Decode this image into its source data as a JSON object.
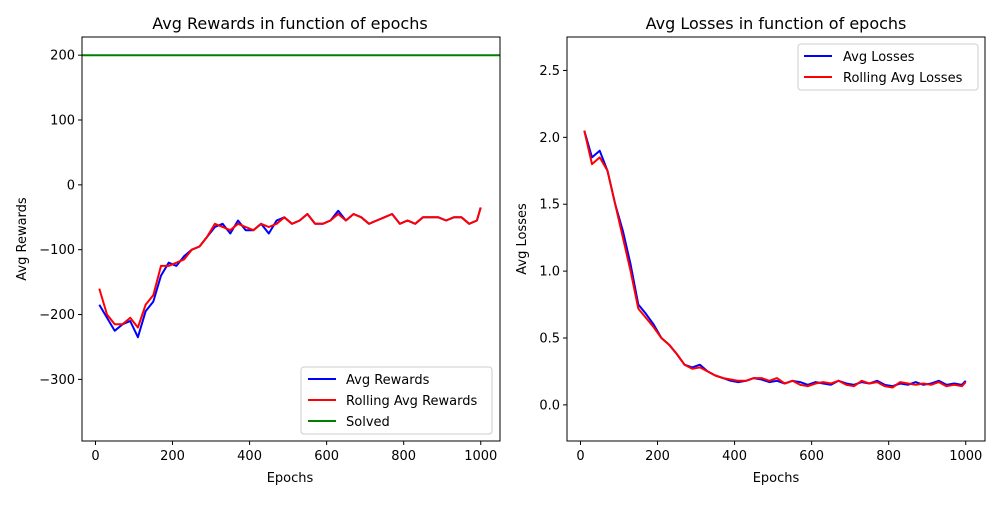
{
  "chart_data": [
    {
      "type": "line",
      "title": "Avg Rewards in function of epochs",
      "xlabel": "Epochs",
      "ylabel": "Avg Rewards",
      "xlim": [
        -35,
        1050
      ],
      "ylim": [
        -395,
        228
      ],
      "xticks": [
        0,
        200,
        400,
        600,
        800,
        1000
      ],
      "yticks": [
        -300,
        -200,
        -100,
        0,
        100,
        200
      ],
      "xtick_labels": [
        "0",
        "200",
        "400",
        "600",
        "800",
        "1000"
      ],
      "ytick_labels": [
        "−300",
        "−200",
        "−100",
        "0",
        "100",
        "200"
      ],
      "legend_position": "lower-right",
      "series": [
        {
          "name": "Avg Rewards",
          "color": "#0000ff",
          "x": [
            10,
            30,
            50,
            70,
            90,
            110,
            130,
            150,
            170,
            190,
            210,
            230,
            250,
            270,
            290,
            310,
            330,
            350,
            370,
            390,
            410,
            430,
            450,
            470,
            490,
            510,
            530,
            550,
            570,
            590,
            610,
            630,
            650,
            670,
            690,
            710,
            730,
            750,
            770,
            790,
            810,
            830,
            850,
            870,
            890,
            910,
            930,
            950,
            970,
            990,
            1000
          ],
          "y": [
            -185,
            -205,
            -225,
            -215,
            -210,
            -235,
            -195,
            -180,
            -140,
            -120,
            -125,
            -110,
            -100,
            -95,
            -80,
            -65,
            -60,
            -75,
            -55,
            -70,
            -70,
            -60,
            -75,
            -55,
            -50,
            -60,
            -55,
            -45,
            -60,
            -60,
            -55,
            -40,
            -55,
            -45,
            -50,
            -60,
            -55,
            -50,
            -45,
            -60,
            -55,
            -60,
            -50,
            -50,
            -50,
            -55,
            -50,
            -50,
            -60,
            -55,
            -35
          ]
        },
        {
          "name": "Rolling Avg Rewards",
          "color": "#ff0000",
          "x": [
            10,
            30,
            50,
            70,
            90,
            110,
            130,
            150,
            170,
            190,
            210,
            230,
            250,
            270,
            290,
            310,
            330,
            350,
            370,
            390,
            410,
            430,
            450,
            470,
            490,
            510,
            530,
            550,
            570,
            590,
            610,
            630,
            650,
            670,
            690,
            710,
            730,
            750,
            770,
            790,
            810,
            830,
            850,
            870,
            890,
            910,
            930,
            950,
            970,
            990,
            1000
          ],
          "y": [
            -160,
            -200,
            -215,
            -215,
            -205,
            -220,
            -185,
            -170,
            -125,
            -125,
            -120,
            -115,
            -100,
            -95,
            -80,
            -60,
            -65,
            -70,
            -60,
            -65,
            -70,
            -60,
            -65,
            -60,
            -50,
            -60,
            -55,
            -45,
            -60,
            -60,
            -55,
            -45,
            -55,
            -45,
            -50,
            -60,
            -55,
            -50,
            -45,
            -60,
            -55,
            -60,
            -50,
            -50,
            -50,
            -55,
            -50,
            -50,
            -60,
            -55,
            -35
          ]
        },
        {
          "name": "Solved",
          "color": "#008000",
          "x": [
            -35,
            1050
          ],
          "y": [
            200,
            200
          ]
        }
      ]
    },
    {
      "type": "line",
      "title": "Avg Losses in function of epochs",
      "xlabel": "Epochs",
      "ylabel": "Avg Losses",
      "xlim": [
        -35,
        1050
      ],
      "ylim": [
        -0.27,
        2.75
      ],
      "xticks": [
        0,
        200,
        400,
        600,
        800,
        1000
      ],
      "yticks": [
        0.0,
        0.5,
        1.0,
        1.5,
        2.0,
        2.5
      ],
      "xtick_labels": [
        "0",
        "200",
        "400",
        "600",
        "800",
        "1000"
      ],
      "ytick_labels": [
        "0.0",
        "0.5",
        "1.0",
        "1.5",
        "2.0",
        "2.5"
      ],
      "legend_position": "upper-right",
      "series": [
        {
          "name": "Avg Losses",
          "color": "#0000ff",
          "x": [
            10,
            30,
            50,
            70,
            90,
            110,
            130,
            150,
            170,
            190,
            210,
            230,
            250,
            270,
            290,
            310,
            330,
            350,
            370,
            390,
            410,
            430,
            450,
            470,
            490,
            510,
            530,
            550,
            570,
            590,
            610,
            630,
            650,
            670,
            690,
            710,
            730,
            750,
            770,
            790,
            810,
            830,
            850,
            870,
            890,
            910,
            930,
            950,
            970,
            990,
            1000
          ],
          "y": [
            2.05,
            1.85,
            1.9,
            1.75,
            1.5,
            1.3,
            1.05,
            0.75,
            0.68,
            0.6,
            0.5,
            0.45,
            0.38,
            0.3,
            0.28,
            0.3,
            0.25,
            0.22,
            0.2,
            0.18,
            0.17,
            0.18,
            0.2,
            0.19,
            0.17,
            0.18,
            0.16,
            0.18,
            0.17,
            0.15,
            0.17,
            0.16,
            0.15,
            0.18,
            0.16,
            0.15,
            0.17,
            0.16,
            0.18,
            0.15,
            0.14,
            0.16,
            0.15,
            0.17,
            0.15,
            0.16,
            0.18,
            0.15,
            0.16,
            0.15,
            0.18
          ]
        },
        {
          "name": "Rolling Avg Losses",
          "color": "#ff0000",
          "x": [
            10,
            30,
            50,
            70,
            90,
            110,
            130,
            150,
            170,
            190,
            210,
            230,
            250,
            270,
            290,
            310,
            330,
            350,
            370,
            390,
            410,
            430,
            450,
            470,
            490,
            510,
            530,
            550,
            570,
            590,
            610,
            630,
            650,
            670,
            690,
            710,
            730,
            750,
            770,
            790,
            810,
            830,
            850,
            870,
            890,
            910,
            930,
            950,
            970,
            990,
            1000
          ],
          "y": [
            2.05,
            1.8,
            1.85,
            1.75,
            1.5,
            1.25,
            1.0,
            0.72,
            0.65,
            0.58,
            0.5,
            0.45,
            0.38,
            0.3,
            0.27,
            0.28,
            0.25,
            0.22,
            0.2,
            0.19,
            0.18,
            0.18,
            0.2,
            0.2,
            0.18,
            0.2,
            0.16,
            0.18,
            0.15,
            0.14,
            0.16,
            0.17,
            0.16,
            0.18,
            0.15,
            0.14,
            0.18,
            0.16,
            0.17,
            0.14,
            0.13,
            0.17,
            0.16,
            0.15,
            0.16,
            0.15,
            0.17,
            0.14,
            0.15,
            0.14,
            0.17
          ]
        }
      ]
    }
  ]
}
